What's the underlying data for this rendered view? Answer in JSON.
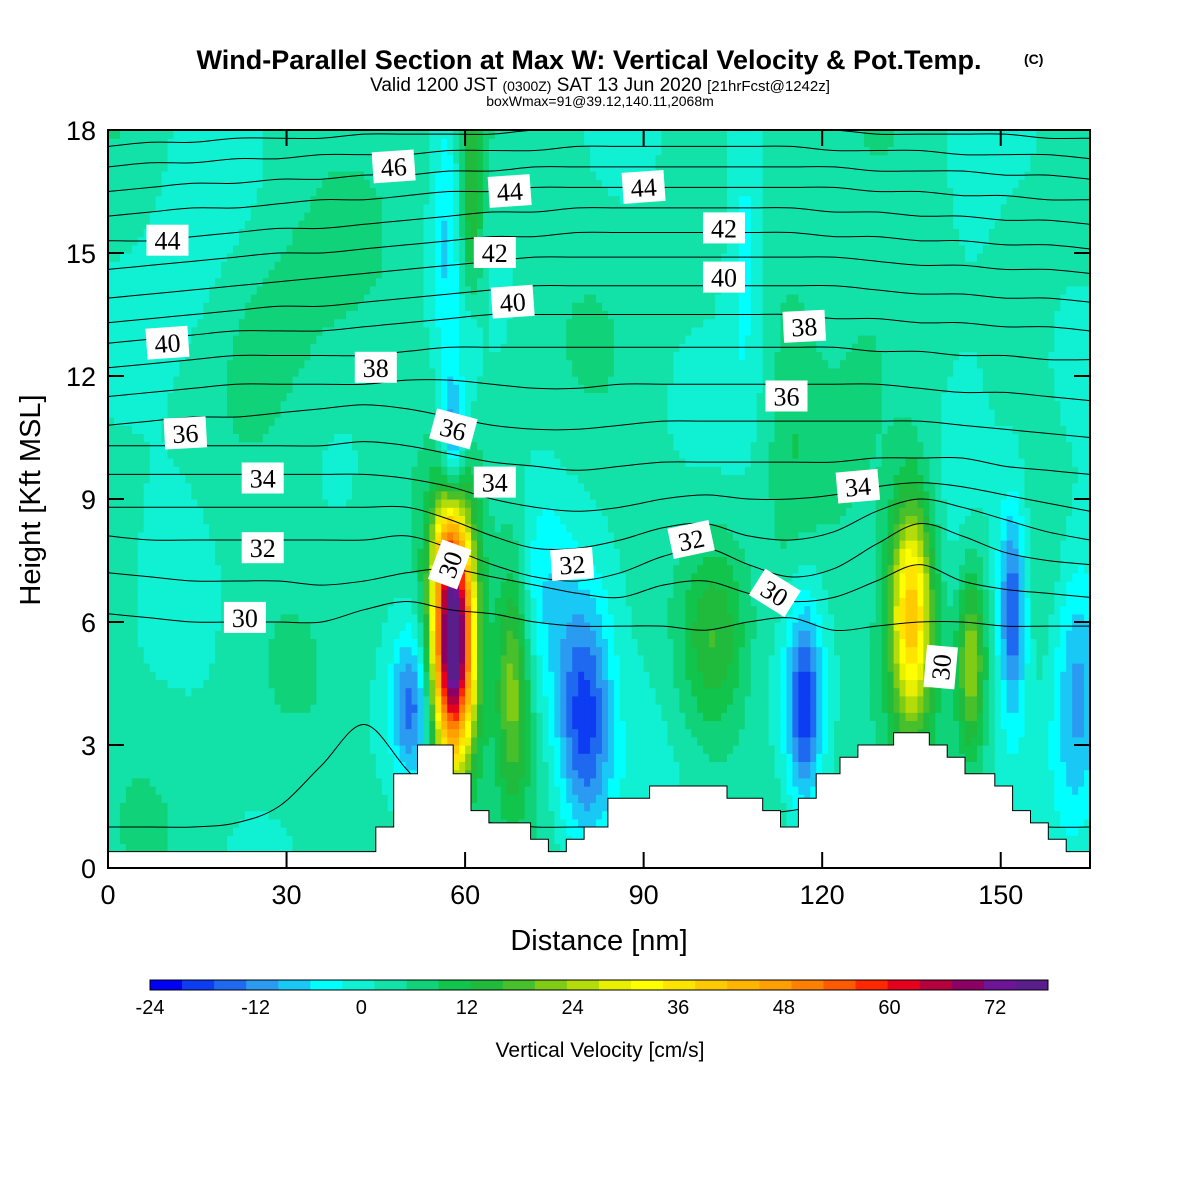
{
  "chart_data": {
    "type": "heatmap",
    "title": "Wind-Parallel Section at Max W: Vertical Velocity & Pot.Temp.",
    "title_mark": "(C)",
    "subtitle_parts": [
      "Valid 1200 JST ",
      "(0300Z)",
      " SAT 13 Jun 2020 ",
      "[21hrFcst@1242z]"
    ],
    "subtitle2": "boxWmax=91@39.12,140.11,2068m",
    "xlabel": "Distance [nm]",
    "ylabel": "Height [Kft MSL]",
    "xlim": [
      0,
      165
    ],
    "ylim": [
      0,
      18
    ],
    "x_ticks": [
      0,
      30,
      60,
      90,
      120,
      150
    ],
    "y_ticks": [
      0,
      3,
      6,
      9,
      12,
      15,
      18
    ],
    "colorbar": {
      "label": "Vertical Velocity [cm/s]",
      "min": -24,
      "max": 78,
      "ticks": [
        -24,
        -12,
        0,
        12,
        24,
        36,
        48,
        60,
        72
      ],
      "colors": [
        "#0000f5",
        "#0d3cf2",
        "#1e69f0",
        "#2a9bf0",
        "#19c8f5",
        "#00ffff",
        "#10f0d2",
        "#12e2a8",
        "#10d278",
        "#10c44c",
        "#20bb3c",
        "#48c02c",
        "#80cc14",
        "#b4dc0a",
        "#e8f000",
        "#ffff00",
        "#ffe400",
        "#ffca00",
        "#ffb400",
        "#ffa000",
        "#ff8000",
        "#ff5a00",
        "#ff2800",
        "#e6001e",
        "#b4003c",
        "#8c0064",
        "#6e1496",
        "#5a1e8c"
      ]
    },
    "terrain": [
      [
        0,
        0.4
      ],
      [
        45,
        0.4
      ],
      [
        45,
        1
      ],
      [
        48,
        1
      ],
      [
        48,
        2.3
      ],
      [
        52,
        2.3
      ],
      [
        52,
        3
      ],
      [
        58,
        3
      ],
      [
        58,
        2.3
      ],
      [
        61,
        2.3
      ],
      [
        61,
        1.4
      ],
      [
        64,
        1.4
      ],
      [
        64,
        1.1
      ],
      [
        71,
        1.1
      ],
      [
        71,
        0.7
      ],
      [
        74,
        0.7
      ],
      [
        74,
        0.4
      ],
      [
        77,
        0.4
      ],
      [
        77,
        0.7
      ],
      [
        80,
        0.7
      ],
      [
        80,
        1
      ],
      [
        84,
        1
      ],
      [
        84,
        1.7
      ],
      [
        91,
        1.7
      ],
      [
        91,
        2
      ],
      [
        104,
        2
      ],
      [
        104,
        1.7
      ],
      [
        110,
        1.7
      ],
      [
        110,
        1.4
      ],
      [
        113,
        1.4
      ],
      [
        113,
        1
      ],
      [
        116,
        1
      ],
      [
        116,
        1.7
      ],
      [
        119,
        1.7
      ],
      [
        119,
        2.3
      ],
      [
        123,
        2.3
      ],
      [
        123,
        2.7
      ],
      [
        126,
        2.7
      ],
      [
        126,
        3
      ],
      [
        132,
        3
      ],
      [
        132,
        3.3
      ],
      [
        138,
        3.3
      ],
      [
        138,
        3
      ],
      [
        141,
        3
      ],
      [
        141,
        2.7
      ],
      [
        144,
        2.7
      ],
      [
        144,
        2.3
      ],
      [
        149,
        2.3
      ],
      [
        149,
        2
      ],
      [
        152,
        2
      ],
      [
        152,
        1.4
      ],
      [
        155,
        1.4
      ],
      [
        155,
        1.1
      ],
      [
        158,
        1.1
      ],
      [
        158,
        0.7
      ],
      [
        161,
        0.7
      ],
      [
        161,
        0.4
      ],
      [
        165,
        0.4
      ]
    ],
    "w_features": [
      {
        "x": 58,
        "z": 5.5,
        "sx": 2.5,
        "sz": 2.1,
        "w": 80
      },
      {
        "x": 57,
        "z": 7.9,
        "sx": 1.6,
        "sz": 0.8,
        "w": 12
      },
      {
        "x": 51,
        "z": 4.0,
        "sx": 2.3,
        "sz": 1.3,
        "w": -16
      },
      {
        "x": 58,
        "z": 10.4,
        "sx": 1.3,
        "sz": 1.1,
        "w": -18
      },
      {
        "x": 57,
        "z": 15.5,
        "sx": 1.8,
        "sz": 2.6,
        "w": -8
      },
      {
        "x": 61,
        "z": 16.5,
        "sx": 1.5,
        "sz": 2.5,
        "w": 14
      },
      {
        "x": 61,
        "z": 12.8,
        "sx": 1.2,
        "sz": 1.2,
        "w": -6
      },
      {
        "x": 68,
        "z": 4.6,
        "sx": 2.0,
        "sz": 2.1,
        "w": 18
      },
      {
        "x": 80,
        "z": 3.6,
        "sx": 3.4,
        "sz": 2.0,
        "w": -22
      },
      {
        "x": 73,
        "z": 6.5,
        "sx": 3.2,
        "sz": 2.0,
        "w": -6
      },
      {
        "x": 92,
        "z": 5.0,
        "sx": 4.5,
        "sz": 2.5,
        "w": -3
      },
      {
        "x": 102,
        "z": 5.6,
        "sx": 4.0,
        "sz": 1.6,
        "w": 12
      },
      {
        "x": 117,
        "z": 4.0,
        "sx": 2.1,
        "sz": 1.8,
        "w": -20
      },
      {
        "x": 107,
        "z": 16.0,
        "sx": 2.5,
        "sz": 3.0,
        "w": -8
      },
      {
        "x": 115,
        "z": 10.5,
        "sx": 3.0,
        "sz": 3.0,
        "w": 4
      },
      {
        "x": 135,
        "z": 6.3,
        "sx": 2.6,
        "sz": 2.0,
        "w": 38
      },
      {
        "x": 145,
        "z": 5.0,
        "sx": 1.7,
        "sz": 1.6,
        "w": 20
      },
      {
        "x": 152,
        "z": 6.3,
        "sx": 1.7,
        "sz": 1.8,
        "w": -20
      },
      {
        "x": 163,
        "z": 4.5,
        "sx": 3.0,
        "sz": 2.5,
        "w": -14
      },
      {
        "x": 29,
        "z": 13.0,
        "sx": 7.0,
        "sz": 2.5,
        "w": 4
      },
      {
        "x": 13,
        "z": 14.0,
        "sx": 6.0,
        "sz": 4.0,
        "w": -4
      },
      {
        "x": 128,
        "z": 15.0,
        "sx": 5.0,
        "sz": 3.0,
        "w": 4
      },
      {
        "x": 145,
        "z": 14.0,
        "sx": 5.0,
        "sz": 3.0,
        "w": -4
      }
    ],
    "theta_contours": [
      {
        "theta": 29,
        "y": [
          1.0,
          1.0,
          1.0,
          1.1,
          1.5,
          2.5,
          3.5,
          2.4,
          1.3,
          1.1,
          1.0,
          1.0,
          1.0,
          1.0,
          1.1,
          1.3,
          1.4,
          1.6,
          1.8,
          1.6,
          1.3,
          1.1,
          1.0,
          1.0
        ]
      },
      {
        "theta": 30,
        "y": [
          6.2,
          6.1,
          6.0,
          6.0,
          6.0,
          6.0,
          6.3,
          6.5,
          6.3,
          6.2,
          6.0,
          5.9,
          5.9,
          5.9,
          5.8,
          6.0,
          6.1,
          5.8,
          5.9,
          6.0,
          6.0,
          5.9,
          5.9,
          5.9
        ]
      },
      {
        "theta": 31,
        "y": [
          7.2,
          7.1,
          7.0,
          7.0,
          7.0,
          6.9,
          7.0,
          7.2,
          7.3,
          7.1,
          6.9,
          6.7,
          6.6,
          6.9,
          7.0,
          6.7,
          6.5,
          6.6,
          7.0,
          7.4,
          7.0,
          6.8,
          6.7,
          6.6
        ]
      },
      {
        "theta": 32,
        "y": [
          8.1,
          8.0,
          8.0,
          8.0,
          8.0,
          8.0,
          8.0,
          8.1,
          7.8,
          7.4,
          7.1,
          7.0,
          7.2,
          7.6,
          7.8,
          7.4,
          7.1,
          7.3,
          7.9,
          8.4,
          8.1,
          7.7,
          7.5,
          7.4
        ]
      },
      {
        "theta": 33,
        "y": [
          8.8,
          8.8,
          8.8,
          8.8,
          8.8,
          8.8,
          8.8,
          8.8,
          8.5,
          8.1,
          7.8,
          7.8,
          8.0,
          8.3,
          8.4,
          8.1,
          8.0,
          8.2,
          8.7,
          9.0,
          8.8,
          8.5,
          8.2,
          8.0
        ]
      },
      {
        "theta": 34,
        "y": [
          9.6,
          9.6,
          9.6,
          9.6,
          9.6,
          9.6,
          9.6,
          9.5,
          9.3,
          9.0,
          8.8,
          8.7,
          8.8,
          9.0,
          9.1,
          9.0,
          9.0,
          9.1,
          9.3,
          9.4,
          9.3,
          9.1,
          8.9,
          8.7
        ]
      },
      {
        "theta": 35,
        "y": [
          10.3,
          10.3,
          10.3,
          10.3,
          10.3,
          10.3,
          10.4,
          10.3,
          10.1,
          9.9,
          9.8,
          9.7,
          9.8,
          9.9,
          9.9,
          9.9,
          9.9,
          9.9,
          10.0,
          10.0,
          10.0,
          9.8,
          9.7,
          9.6
        ]
      },
      {
        "theta": 36,
        "y": [
          10.8,
          10.9,
          11.0,
          11.0,
          11.1,
          11.2,
          11.3,
          11.2,
          11.0,
          10.8,
          10.7,
          10.7,
          10.8,
          10.9,
          10.9,
          10.9,
          10.9,
          10.9,
          10.9,
          10.9,
          10.8,
          10.7,
          10.6,
          10.5
        ]
      },
      {
        "theta": 37,
        "y": [
          11.5,
          11.6,
          11.7,
          11.8,
          11.8,
          11.8,
          11.8,
          11.9,
          11.9,
          11.8,
          11.7,
          11.7,
          11.8,
          11.8,
          11.8,
          11.8,
          11.8,
          11.8,
          11.8,
          11.7,
          11.6,
          11.6,
          11.5,
          11.4
        ]
      },
      {
        "theta": 38,
        "y": [
          12.2,
          12.3,
          12.4,
          12.5,
          12.5,
          12.5,
          12.5,
          12.6,
          12.7,
          12.7,
          12.7,
          12.7,
          12.7,
          12.7,
          12.7,
          12.7,
          12.7,
          12.7,
          12.6,
          12.6,
          12.5,
          12.5,
          12.4,
          12.4
        ]
      },
      {
        "theta": 39,
        "y": [
          12.8,
          12.9,
          13.0,
          13.1,
          13.1,
          13.1,
          13.2,
          13.3,
          13.4,
          13.5,
          13.5,
          13.5,
          13.5,
          13.5,
          13.5,
          13.5,
          13.5,
          13.4,
          13.4,
          13.3,
          13.3,
          13.2,
          13.2,
          13.1
        ]
      },
      {
        "theta": 40,
        "y": [
          13.3,
          13.4,
          13.5,
          13.6,
          13.7,
          13.7,
          13.8,
          13.9,
          14.0,
          14.1,
          14.2,
          14.2,
          14.2,
          14.2,
          14.2,
          14.2,
          14.2,
          14.2,
          14.1,
          14.0,
          14.0,
          13.9,
          13.9,
          13.8
        ]
      },
      {
        "theta": 41,
        "y": [
          13.9,
          14.0,
          14.1,
          14.2,
          14.3,
          14.4,
          14.5,
          14.6,
          14.7,
          14.8,
          14.9,
          14.9,
          14.9,
          14.9,
          14.9,
          14.9,
          14.9,
          14.9,
          14.8,
          14.7,
          14.7,
          14.6,
          14.6,
          14.5
        ]
      },
      {
        "theta": 42,
        "y": [
          14.6,
          14.7,
          14.8,
          14.9,
          15.0,
          15.0,
          15.1,
          15.2,
          15.3,
          15.4,
          15.4,
          15.5,
          15.5,
          15.5,
          15.5,
          15.5,
          15.5,
          15.4,
          15.4,
          15.3,
          15.3,
          15.2,
          15.2,
          15.1
        ]
      },
      {
        "theta": 43,
        "y": [
          15.3,
          15.3,
          15.4,
          15.5,
          15.6,
          15.6,
          15.7,
          15.8,
          15.9,
          16.0,
          16.0,
          16.1,
          16.1,
          16.1,
          16.1,
          16.1,
          16.1,
          16.0,
          16.0,
          15.9,
          15.9,
          15.8,
          15.8,
          15.7
        ]
      },
      {
        "theta": 44,
        "y": [
          15.9,
          16.0,
          16.1,
          16.1,
          16.2,
          16.3,
          16.3,
          16.4,
          16.5,
          16.5,
          16.6,
          16.6,
          16.6,
          16.6,
          16.6,
          16.6,
          16.6,
          16.6,
          16.5,
          16.5,
          16.4,
          16.4,
          16.3,
          16.3
        ]
      },
      {
        "theta": 45,
        "y": [
          16.5,
          16.6,
          16.7,
          16.7,
          16.8,
          16.8,
          16.9,
          16.9,
          17.0,
          17.0,
          17.1,
          17.1,
          17.1,
          17.1,
          17.1,
          17.1,
          17.1,
          17.1,
          17.0,
          17.0,
          17.0,
          16.9,
          16.9,
          16.8
        ]
      },
      {
        "theta": 46,
        "y": [
          17.1,
          17.2,
          17.2,
          17.3,
          17.3,
          17.4,
          17.4,
          17.4,
          17.5,
          17.5,
          17.5,
          17.6,
          17.6,
          17.6,
          17.6,
          17.6,
          17.6,
          17.5,
          17.5,
          17.5,
          17.4,
          17.4,
          17.4,
          17.3
        ]
      },
      {
        "theta": 47,
        "y": [
          17.6,
          17.7,
          17.7,
          17.8,
          17.8,
          17.8,
          17.9,
          17.9,
          17.9,
          17.9,
          18.0,
          18.0,
          18.0,
          18.0,
          18.0,
          18.0,
          18.0,
          18.0,
          17.9,
          17.9,
          17.9,
          17.9,
          17.8,
          17.8
        ]
      }
    ],
    "contour_labels": [
      {
        "text": "46",
        "x": 48,
        "y": 17.1,
        "rot": -4
      },
      {
        "text": "44",
        "x": 67.5,
        "y": 16.5,
        "rot": -4
      },
      {
        "text": "44",
        "x": 90,
        "y": 16.6,
        "rot": -4
      },
      {
        "text": "44",
        "x": 10,
        "y": 15.3,
        "rot": 0
      },
      {
        "text": "42",
        "x": 65,
        "y": 15.0,
        "rot": 0
      },
      {
        "text": "42",
        "x": 103.5,
        "y": 15.6,
        "rot": 0
      },
      {
        "text": "40",
        "x": 103.5,
        "y": 14.4,
        "rot": 0
      },
      {
        "text": "40",
        "x": 68,
        "y": 13.8,
        "rot": -4
      },
      {
        "text": "40",
        "x": 10,
        "y": 12.8,
        "rot": -4
      },
      {
        "text": "38",
        "x": 117,
        "y": 13.2,
        "rot": -3
      },
      {
        "text": "38",
        "x": 45,
        "y": 12.2,
        "rot": 0
      },
      {
        "text": "36",
        "x": 114,
        "y": 11.5,
        "rot": 0
      },
      {
        "text": "36",
        "x": 58,
        "y": 10.7,
        "rot": 15
      },
      {
        "text": "36",
        "x": 13,
        "y": 10.6,
        "rot": -3
      },
      {
        "text": "34",
        "x": 26,
        "y": 9.5,
        "rot": 0
      },
      {
        "text": "34",
        "x": 65,
        "y": 9.4,
        "rot": 0
      },
      {
        "text": "34",
        "x": 126,
        "y": 9.3,
        "rot": -5
      },
      {
        "text": "32",
        "x": 26,
        "y": 7.8,
        "rot": 0
      },
      {
        "text": "32",
        "x": 78,
        "y": 7.4,
        "rot": -4
      },
      {
        "text": "32",
        "x": 98,
        "y": 8.0,
        "rot": -12
      },
      {
        "text": "30",
        "x": 23,
        "y": 6.1,
        "rot": 0
      },
      {
        "text": "30",
        "x": 57.5,
        "y": 7.4,
        "rot": -70
      },
      {
        "text": "30",
        "x": 112,
        "y": 6.7,
        "rot": 32
      },
      {
        "text": "30",
        "x": 140,
        "y": 4.9,
        "rot": -85
      }
    ]
  }
}
